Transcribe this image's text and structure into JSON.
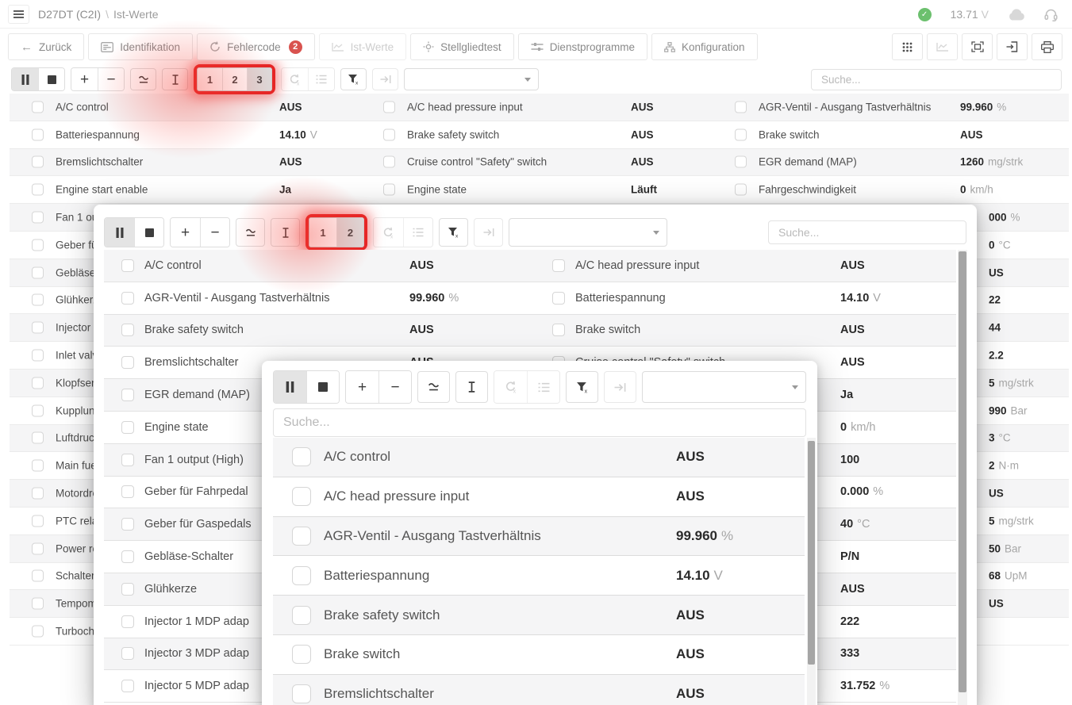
{
  "icons": {
    "back_arrow": "←",
    "plus": "+",
    "minus": "−",
    "check": "✓"
  },
  "search_placeholder": "Suche...",
  "header": {
    "device": "D27DT (C2I)",
    "separator": "\\",
    "page": "Ist-Werte",
    "voltage": "13.71",
    "voltage_unit": "V"
  },
  "nav": {
    "back_label": "Zurück",
    "tabs": [
      {
        "label": "Identifikation"
      },
      {
        "label": "Fehlercode",
        "badge": "2"
      },
      {
        "label": "Ist-Werte",
        "disabled": true
      },
      {
        "label": "Stellgliedtest"
      },
      {
        "label": "Dienstprogramme"
      },
      {
        "label": "Konfiguration"
      }
    ]
  },
  "colors": {
    "accent_red": "#e62525",
    "badge_red": "#d9534f",
    "ok_green": "#6cc06e"
  },
  "toolbars": {
    "main": {
      "pages": [
        "1",
        "2",
        "3"
      ],
      "active_page": "3",
      "dropdown_value": ""
    },
    "overlay1": {
      "pages": [
        "1",
        "2"
      ],
      "active_page": "2",
      "dropdown_value": ""
    },
    "overlay2": {
      "dropdown_value": ""
    }
  },
  "main_table": {
    "col1": [
      {
        "label": "A/C control",
        "value": "AUS"
      },
      {
        "label": "Batteriespannung",
        "value": "14.10",
        "unit": "V"
      },
      {
        "label": "Bremslichtschalter",
        "value": "AUS"
      },
      {
        "label": "Engine start enable",
        "value": "Ja"
      },
      {
        "label": "Fan 1 outp"
      },
      {
        "label": "Geber für"
      },
      {
        "label": "Gebläse-Sc"
      },
      {
        "label": "Glühkerzer"
      },
      {
        "label": "Injector 3 N"
      },
      {
        "label": "Inlet valve"
      },
      {
        "label": "Klopfsensc"
      },
      {
        "label": "Kupplungs"
      },
      {
        "label": "Luftdrucks"
      },
      {
        "label": "Main fuel a"
      },
      {
        "label": "Motordreh"
      },
      {
        "label": "PTC relay 2"
      },
      {
        "label": "Power rela"
      },
      {
        "label": "Schalter \"R"
      },
      {
        "label": "Tempomat"
      },
      {
        "label": "Turbochar"
      }
    ],
    "col2": [
      {
        "label": "A/C head pressure input",
        "value": "AUS"
      },
      {
        "label": "Brake safety switch",
        "value": "AUS"
      },
      {
        "label": "Cruise control \"Safety\" switch",
        "value": "AUS"
      },
      {
        "label": "Engine state",
        "value": "Läuft"
      }
    ],
    "col3": [
      {
        "label": "AGR-Ventil - Ausgang Tastverhältnis",
        "value": "99.960",
        "unit": "%"
      },
      {
        "label": "Brake switch",
        "value": "AUS"
      },
      {
        "label": "EGR demand (MAP)",
        "value": "1260",
        "unit": "mg/strk"
      },
      {
        "label": "Fahrgeschwindigkeit",
        "value": "0",
        "unit": "km/h"
      }
    ],
    "col3_partial": [
      {
        "value": "000",
        "unit": "%"
      },
      {
        "value": "0",
        "unit": "°C"
      },
      {
        "value": "US"
      },
      {
        "value": "22"
      },
      {
        "value": "44"
      },
      {
        "value": "2.2"
      },
      {
        "value": "5",
        "unit": "mg/strk"
      },
      {
        "value": "990",
        "unit": "Bar"
      },
      {
        "value": "3",
        "unit": "°C"
      },
      {
        "value": "2",
        "unit": "N·m"
      },
      {
        "value": "US"
      },
      {
        "value": "5",
        "unit": "mg/strk"
      },
      {
        "value": "50",
        "unit": "Bar"
      },
      {
        "value": "68",
        "unit": "UpM"
      },
      {
        "value": "US"
      }
    ]
  },
  "overlay1": {
    "colA": [
      {
        "label": "A/C control",
        "value": "AUS"
      },
      {
        "label": "AGR-Ventil - Ausgang Tastverhältnis",
        "value": "99.960",
        "unit": "%"
      },
      {
        "label": "Brake safety switch",
        "value": "AUS"
      },
      {
        "label": "Bremslichtschalter",
        "value": "AUS"
      },
      {
        "label": "EGR demand (MAP)"
      },
      {
        "label": "Engine state"
      },
      {
        "label": "Fan 1 output (High)"
      },
      {
        "label": "Geber für Fahrpedal"
      },
      {
        "label": "Geber für Gaspedals"
      },
      {
        "label": "Gebläse-Schalter"
      },
      {
        "label": "Glühkerze"
      },
      {
        "label": "Injector 1 MDP adap"
      },
      {
        "label": "Injector 3 MDP adap"
      },
      {
        "label": "Injector 5 MDP adap"
      }
    ],
    "colB": [
      {
        "label": "A/C head pressure input",
        "value": "AUS"
      },
      {
        "label": "Batteriespannung",
        "value": "14.10",
        "unit": "V"
      },
      {
        "label": "Brake switch",
        "value": "AUS"
      },
      {
        "label": "Cruise control \"Safety\" switch",
        "value": "AUS"
      },
      {
        "value": "Ja"
      },
      {
        "value": "0",
        "unit": "km/h"
      },
      {
        "value": "100"
      },
      {
        "value": "0.000",
        "unit": "%"
      },
      {
        "value": "40",
        "unit": "°C"
      },
      {
        "value": "P/N"
      },
      {
        "value": "AUS"
      },
      {
        "value": "222"
      },
      {
        "value": "333"
      },
      {
        "value": "31.752",
        "unit": "%"
      }
    ]
  },
  "overlay2": {
    "rows": [
      {
        "label": "A/C control",
        "value": "AUS"
      },
      {
        "label": "A/C head pressure input",
        "value": "AUS"
      },
      {
        "label": "AGR-Ventil - Ausgang Tastverhältnis",
        "value": "99.960",
        "unit": "%"
      },
      {
        "label": "Batteriespannung",
        "value": "14.10",
        "unit": "V"
      },
      {
        "label": "Brake safety switch",
        "value": "AUS"
      },
      {
        "label": "Brake switch",
        "value": "AUS"
      },
      {
        "label": "Bremslichtschalter",
        "value": "AUS"
      }
    ]
  }
}
